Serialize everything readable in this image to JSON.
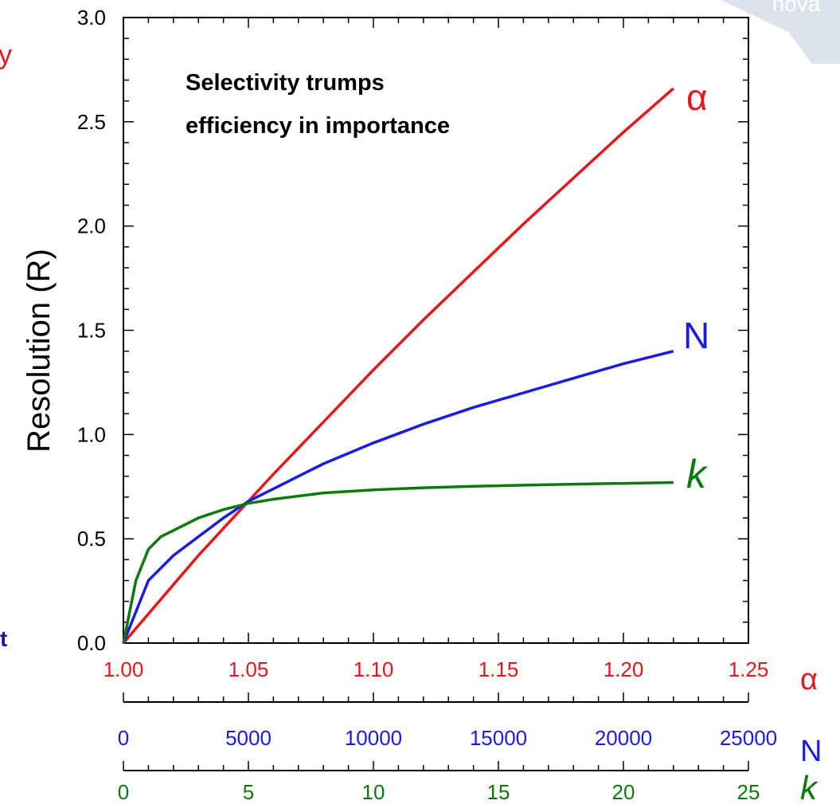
{
  "page_fragments": {
    "left_edge_top": "y",
    "left_edge_bottom": "t",
    "top_right_watermark": "nova"
  },
  "chart_data": {
    "type": "line",
    "annotation": "Selectivity trumps efficiency in importance",
    "annotation_lines": [
      "Selectivity trumps",
      "efficiency in importance"
    ],
    "ylabel": "Resolution (R)",
    "ylim": [
      0,
      3.0
    ],
    "yticks": [
      "0.0",
      "0.5",
      "1.0",
      "1.5",
      "2.0",
      "2.5",
      "3.0"
    ],
    "x_axes": [
      {
        "name": "α",
        "color": "#e8161b",
        "range": [
          1.0,
          1.25
        ],
        "ticks": [
          "1.00",
          "1.05",
          "1.10",
          "1.15",
          "1.20",
          "1.25"
        ]
      },
      {
        "name": "N",
        "color": "#1a1aeb",
        "range": [
          0,
          25000
        ],
        "ticks": [
          "0",
          "5000",
          "10000",
          "15000",
          "20000",
          "25000"
        ]
      },
      {
        "name": "k",
        "color": "#0d7a0d",
        "range": [
          0,
          25
        ],
        "ticks": [
          "0",
          "5",
          "10",
          "15",
          "20",
          "25"
        ]
      }
    ],
    "series": [
      {
        "name": "α",
        "color": "#e8161b",
        "axis": "α",
        "x": [
          1.0,
          1.01,
          1.02,
          1.03,
          1.04,
          1.05,
          1.06,
          1.08,
          1.1,
          1.12,
          1.14,
          1.16,
          1.18,
          1.2,
          1.22
        ],
        "y": [
          0.0,
          0.14,
          0.28,
          0.42,
          0.55,
          0.68,
          0.81,
          1.06,
          1.31,
          1.55,
          1.78,
          2.01,
          2.23,
          2.45,
          2.66
        ]
      },
      {
        "name": "N",
        "color": "#1a1aeb",
        "axis": "N",
        "x": [
          0,
          1000,
          2000,
          3000,
          4000,
          5000,
          6000,
          8000,
          10000,
          12000,
          14000,
          16000,
          18000,
          20000,
          22000
        ],
        "y": [
          0.0,
          0.3,
          0.42,
          0.51,
          0.6,
          0.68,
          0.74,
          0.86,
          0.96,
          1.05,
          1.13,
          1.2,
          1.27,
          1.34,
          1.4
        ]
      },
      {
        "name": "k",
        "color": "#0d7a0d",
        "axis": "k",
        "x": [
          0,
          0.5,
          1,
          1.5,
          2,
          3,
          4,
          5,
          6,
          8,
          10,
          12,
          14,
          16,
          18,
          20,
          22
        ],
        "y": [
          0.0,
          0.3,
          0.45,
          0.51,
          0.54,
          0.6,
          0.64,
          0.67,
          0.69,
          0.72,
          0.735,
          0.745,
          0.752,
          0.757,
          0.762,
          0.766,
          0.77
        ]
      }
    ]
  }
}
